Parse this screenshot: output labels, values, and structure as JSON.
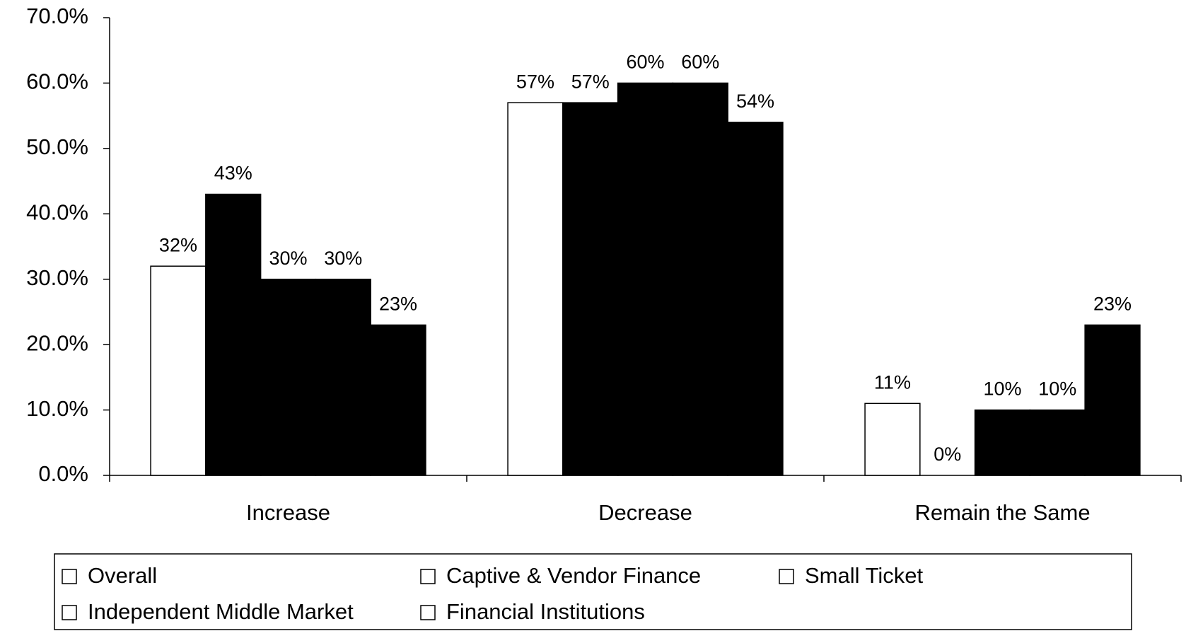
{
  "chart_data": {
    "type": "bar",
    "categories": [
      "Increase",
      "Decrease",
      "Remain the Same"
    ],
    "series": [
      {
        "name": "Overall",
        "color": "#ffffff",
        "values": [
          32,
          57,
          11
        ],
        "value_labels": [
          "32%",
          "57%",
          "11%"
        ]
      },
      {
        "name": "Captive & Vendor Finance",
        "color": "#000000",
        "values": [
          43,
          57,
          0
        ],
        "value_labels": [
          "43%",
          "57%",
          "0%"
        ]
      },
      {
        "name": "Small Ticket",
        "color": "#000000",
        "values": [
          30,
          60,
          10
        ],
        "value_labels": [
          "30%",
          "60%",
          "10%"
        ]
      },
      {
        "name": "Independent Middle Market",
        "color": "#000000",
        "values": [
          30,
          60,
          10
        ],
        "value_labels": [
          "30%",
          "60%",
          "10%"
        ]
      },
      {
        "name": "Financial Institutions",
        "color": "#000000",
        "values": [
          23,
          54,
          23
        ],
        "value_labels": [
          "23%",
          "54%",
          "23%"
        ]
      }
    ],
    "ylim": [
      0,
      70
    ],
    "yticks": [
      {
        "value": 0,
        "label": "0.0%"
      },
      {
        "value": 10,
        "label": "10.0%"
      },
      {
        "value": 20,
        "label": "20.0%"
      },
      {
        "value": 30,
        "label": "30.0%"
      },
      {
        "value": 40,
        "label": "40.0%"
      },
      {
        "value": 50,
        "label": "50.0%"
      },
      {
        "value": 60,
        "label": "60.0%"
      },
      {
        "value": 70,
        "label": "70.0%"
      }
    ],
    "legend": "bottom"
  }
}
